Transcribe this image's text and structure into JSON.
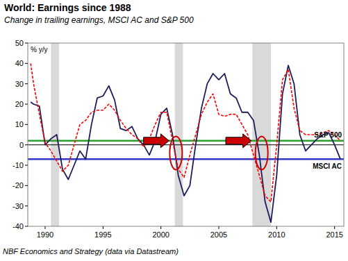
{
  "chart_data": {
    "type": "line",
    "title": "World: Earnings since 1988",
    "subtitle": "Change in trailing earnings, MSCI AC and S&P 500",
    "ylabel": "% y/y",
    "source": "NBF Economics and Strategy (data via Datastream)",
    "x": [
      1988.75,
      1989.0,
      1989.5,
      1990.0,
      1990.5,
      1991.0,
      1991.5,
      1992.0,
      1992.5,
      1993.0,
      1993.5,
      1994.0,
      1994.5,
      1995.0,
      1995.5,
      1996.0,
      1996.5,
      1997.0,
      1997.5,
      1998.0,
      1998.5,
      1999.0,
      1999.5,
      2000.0,
      2000.5,
      2001.0,
      2001.5,
      2002.0,
      2002.5,
      2003.0,
      2003.5,
      2004.0,
      2004.5,
      2005.0,
      2005.5,
      2006.0,
      2006.5,
      2007.0,
      2007.5,
      2008.0,
      2008.5,
      2009.0,
      2009.5,
      2010.0,
      2010.5,
      2011.0,
      2011.5,
      2012.0,
      2012.5,
      2013.0,
      2013.5,
      2014.0,
      2014.5,
      2015.0,
      2015.5
    ],
    "series": [
      {
        "name": "MSCI AC",
        "color": "#1c1c5a",
        "line_style": "solid",
        "values": [
          21,
          20,
          19,
          0,
          3,
          5,
          -12,
          -17,
          -10,
          -3,
          -7,
          10,
          23,
          24,
          29,
          22,
          8,
          7,
          9,
          3,
          0,
          -5,
          2,
          15,
          18,
          5,
          -15,
          -25,
          -20,
          0,
          18,
          30,
          35,
          32,
          35,
          25,
          23,
          16,
          16,
          12,
          -5,
          -28,
          -38,
          -15,
          25,
          39,
          30,
          5,
          -3,
          0,
          3,
          5,
          6,
          0,
          -7
        ]
      },
      {
        "name": "S&P 500",
        "color": "#ff0000",
        "line_style": "dashed",
        "values": [
          40,
          30,
          15,
          1,
          -3,
          -8,
          -13,
          -10,
          0,
          10,
          12,
          16,
          17,
          17,
          20,
          17,
          12,
          8,
          5,
          3,
          -1,
          3,
          10,
          16,
          16,
          2,
          -12,
          -16,
          -5,
          5,
          15,
          21,
          25,
          15,
          14,
          15,
          15,
          10,
          5,
          -5,
          -15,
          -25,
          -28,
          0,
          32,
          37,
          18,
          7,
          5,
          5,
          5,
          6,
          7,
          5,
          2
        ]
      }
    ],
    "reference_lines": [
      {
        "series": 1,
        "value": 2,
        "color": "#2ca02c"
      },
      {
        "series": 0,
        "value": -7,
        "color": "#3535c8"
      }
    ],
    "shaded_periods": [
      {
        "x": [
          1990.5,
          1991.2
        ],
        "color": "#d9d9d9"
      },
      {
        "x": [
          2001.2,
          2001.9
        ],
        "color": "#d9d9d9"
      },
      {
        "x": [
          2007.9,
          2009.5
        ],
        "color": "#d9d9d9"
      }
    ],
    "annotations": [
      {
        "type": "arrow",
        "x": [
          1998.5,
          2000.7
        ],
        "y": 2,
        "color": "#cc0000"
      },
      {
        "type": "arrow",
        "x": [
          2005.6,
          2007.8
        ],
        "y": 2,
        "color": "#cc0000"
      },
      {
        "type": "circle",
        "x": 2001.3,
        "y": -4,
        "color": "#cc0000"
      },
      {
        "type": "circle",
        "x": 2008.7,
        "y": -4,
        "color": "#cc0000"
      }
    ],
    "xlim": [
      1988.5,
      2015.8
    ],
    "xticks": [
      1990,
      1995,
      2000,
      2005,
      2010,
      2015
    ],
    "ylim": [
      -40,
      50
    ],
    "yticks": [
      -40,
      -30,
      -20,
      -10,
      0,
      10,
      20,
      30,
      40,
      50
    ],
    "grid": false
  }
}
